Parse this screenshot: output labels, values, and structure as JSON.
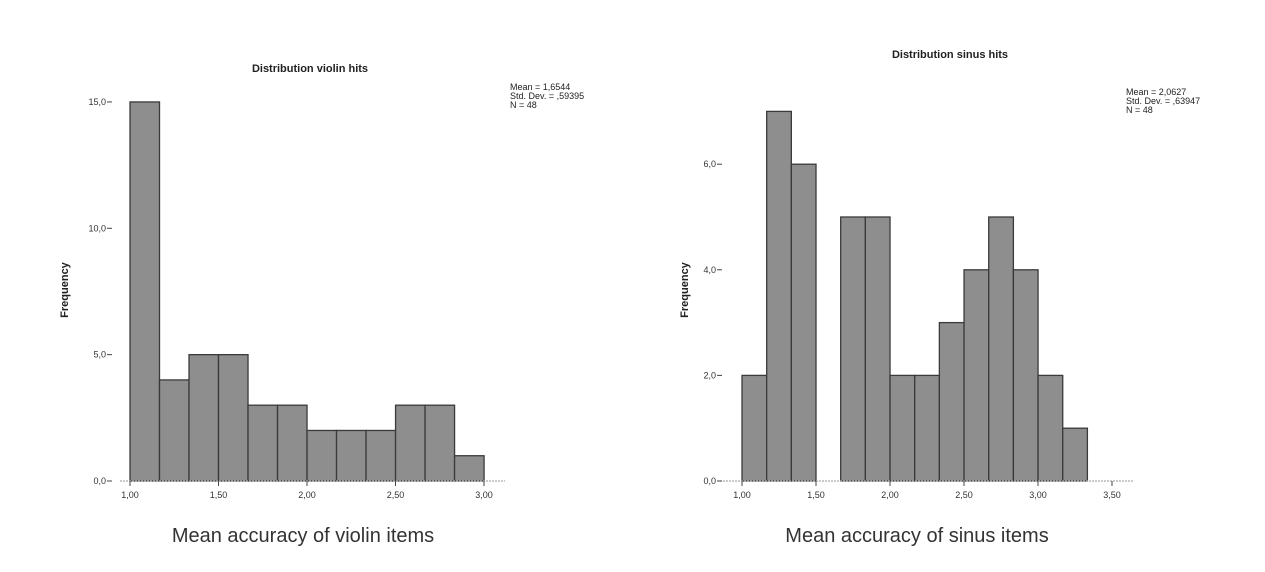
{
  "colors": {
    "bar_fill": "#8e8e8e",
    "bar_stroke": "#3a3a3a",
    "axis": "#aaaaaa"
  },
  "chart_data": [
    {
      "type": "bar",
      "title": "Distribution violin hits",
      "xlabel": "Mean accuracy of violin items",
      "ylabel": "Frequency",
      "bin_start": 1.0,
      "bin_width": 0.1667,
      "values": [
        15,
        4,
        5,
        5,
        3,
        3,
        2,
        2,
        2,
        3,
        3,
        1
      ],
      "xlim": [
        1.0,
        3.0
      ],
      "ylim": [
        0,
        15
      ],
      "xticks": [
        {
          "v": 1.0,
          "label": "1,00"
        },
        {
          "v": 1.5,
          "label": "1,50"
        },
        {
          "v": 2.0,
          "label": "2,00"
        },
        {
          "v": 2.5,
          "label": "2,50"
        },
        {
          "v": 3.0,
          "label": "3,00"
        }
      ],
      "yticks": [
        {
          "v": 0,
          "label": "0,0"
        },
        {
          "v": 5,
          "label": "5,0"
        },
        {
          "v": 10,
          "label": "10,0"
        },
        {
          "v": 15,
          "label": "15,0"
        }
      ],
      "stats": [
        "Mean = 1,6544",
        "Std. Dev. = ,59395",
        "N = 48"
      ],
      "grid": false
    },
    {
      "type": "bar",
      "title": "Distribution sinus hits",
      "xlabel": "Mean accuracy of sinus items",
      "ylabel": "Frequency",
      "bin_start": 1.0,
      "bin_width": 0.1667,
      "values": [
        2,
        7,
        6,
        0,
        5,
        5,
        2,
        2,
        3,
        4,
        5,
        4,
        2,
        1
      ],
      "xlim": [
        1.0,
        3.5
      ],
      "ylim": [
        0,
        7
      ],
      "xticks": [
        {
          "v": 1.0,
          "label": "1,00"
        },
        {
          "v": 1.5,
          "label": "1,50"
        },
        {
          "v": 2.0,
          "label": "2,00"
        },
        {
          "v": 2.5,
          "label": "2,50"
        },
        {
          "v": 3.0,
          "label": "3,00"
        },
        {
          "v": 3.5,
          "label": "3,50"
        }
      ],
      "yticks": [
        {
          "v": 0,
          "label": "0,0"
        },
        {
          "v": 2,
          "label": "2,0"
        },
        {
          "v": 4,
          "label": "4,0"
        },
        {
          "v": 6,
          "label": "6,0"
        }
      ],
      "stats": [
        "Mean = 2,0627",
        "Std. Dev. = ,63947",
        "N = 48"
      ],
      "grid": false
    }
  ]
}
